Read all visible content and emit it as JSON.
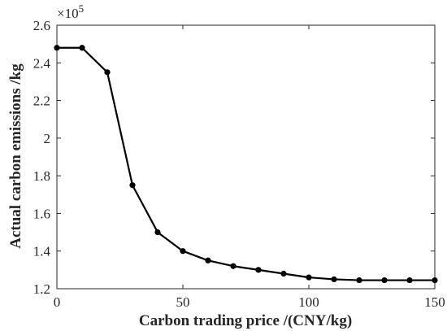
{
  "chart_data": {
    "type": "line",
    "title": "",
    "xlabel": "Carbon trading price /(CNY/kg)",
    "ylabel": "Actual carbon emissions /kg",
    "y_exponent_base": "×10",
    "y_exponent_power": "5",
    "xlim": [
      0,
      150
    ],
    "ylim": [
      1.2,
      2.6
    ],
    "x_ticks": [
      0,
      50,
      100,
      150
    ],
    "x_tick_labels": [
      "0",
      "50",
      "100",
      "150"
    ],
    "y_ticks": [
      1.2,
      1.4,
      1.6,
      1.8,
      2.0,
      2.2,
      2.4,
      2.6
    ],
    "y_tick_labels": [
      "1.2",
      "1.4",
      "1.6",
      "1.8",
      "2",
      "2.2",
      "2.4",
      "2.6"
    ],
    "grid": false,
    "series": [
      {
        "color": "#000000",
        "marker": "circle",
        "x": [
          0,
          10,
          20,
          30,
          40,
          50,
          60,
          70,
          80,
          90,
          100,
          110,
          120,
          130,
          140,
          150
        ],
        "y": [
          2.48,
          2.48,
          2.35,
          1.75,
          1.5,
          1.4,
          1.35,
          1.32,
          1.3,
          1.28,
          1.26,
          1.25,
          1.245,
          1.245,
          1.245,
          1.245
        ]
      }
    ]
  }
}
